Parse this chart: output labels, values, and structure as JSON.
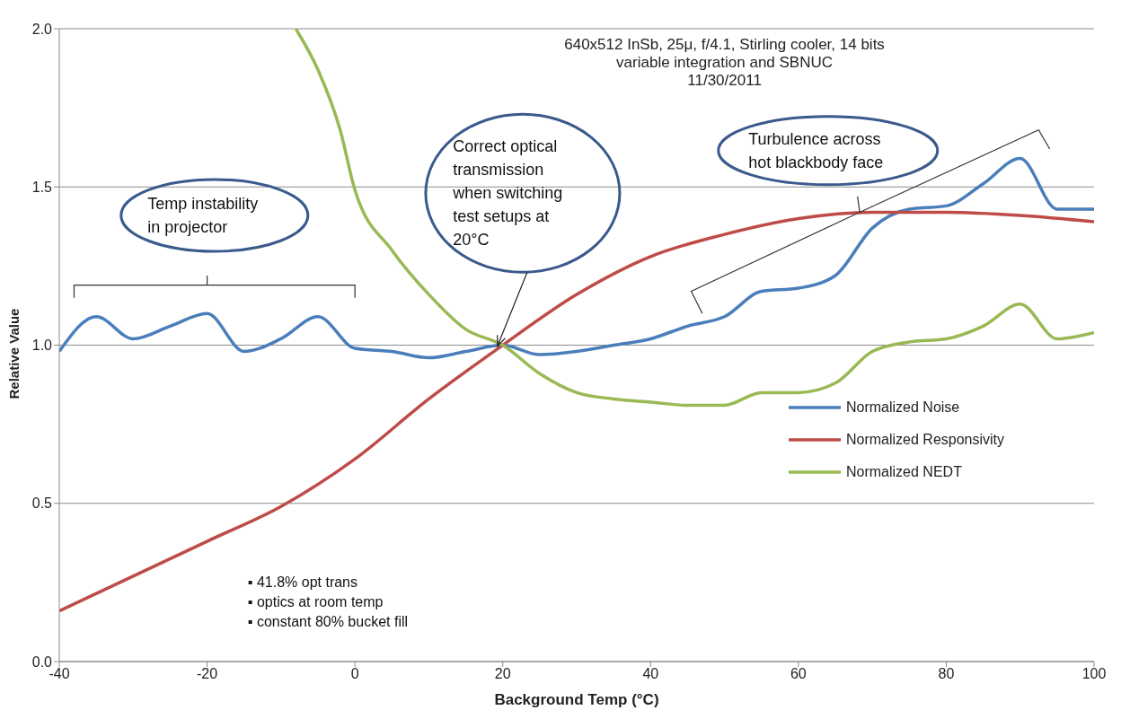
{
  "chart_data": {
    "type": "line",
    "subtitle": "640x512 InSb, 25μ, f/4.1, Stirling cooler, 14 bits\nvariable integration and SBNUC\n11/30/2011",
    "xlabel": "Background Temp (°C)",
    "ylabel": "Relative Value",
    "xlim": [
      -40,
      100
    ],
    "xticks": [
      -40,
      -20,
      0,
      20,
      40,
      60,
      80,
      100
    ],
    "ylim": [
      0,
      2
    ],
    "yticks": [
      {
        "value": 0,
        "label": "0.0"
      },
      0.5,
      {
        "value": 1,
        "label": "1.0"
      },
      1.5,
      {
        "value": 2,
        "label": "2.0"
      }
    ],
    "grid": "y",
    "legend": "bottom right",
    "marker": "none",
    "line_style": "solid",
    "annotations": [
      "Temp instability\nin projector",
      "Correct optical\ntransmission\nwhen switching\ntest setups at\n20°C",
      "Turbulence across\nhot blackbody face",
      "▪ 41.8% opt trans\n▪ optics at room temp\n▪ constant 80% bucket fill"
    ],
    "series": [
      {
        "name": "Normalized Noise",
        "color": "#4a7ebb",
        "x": [
          -40,
          -35,
          -30,
          -25,
          -20,
          -15,
          -10,
          -5,
          0,
          5,
          10,
          15,
          20,
          25,
          30,
          35,
          40,
          45,
          50,
          55,
          60,
          65,
          70,
          75,
          80,
          85,
          90,
          95,
          100
        ],
        "values": [
          0.98,
          1.09,
          1.02,
          1.06,
          1.1,
          0.98,
          1.02,
          1.09,
          0.99,
          0.98,
          0.96,
          0.98,
          1.0,
          0.97,
          0.98,
          1.0,
          1.02,
          1.06,
          1.09,
          1.17,
          1.18,
          1.22,
          1.37,
          1.43,
          1.44,
          1.51,
          1.59,
          1.43,
          1.43
        ]
      },
      {
        "name": "Normalized Responsivity",
        "color": "#be4b48",
        "x": [
          -40,
          -30,
          -20,
          -10,
          0,
          10,
          20,
          30,
          40,
          50,
          60,
          70,
          80,
          90,
          100
        ],
        "values": [
          0.16,
          0.27,
          0.38,
          0.49,
          0.64,
          0.83,
          1.0,
          1.16,
          1.28,
          1.35,
          1.4,
          1.42,
          1.42,
          1.41,
          1.39
        ]
      },
      {
        "name": "Normalized NEDT",
        "color": "#98b954",
        "x": [
          -8,
          -5,
          -2,
          0,
          5,
          10,
          15,
          20,
          25,
          30,
          35,
          40,
          45,
          50,
          55,
          60,
          65,
          70,
          75,
          80,
          85,
          90,
          95,
          100
        ],
        "values": [
          2.0,
          1.87,
          1.68,
          1.49,
          1.3,
          1.16,
          1.05,
          1.0,
          0.91,
          0.85,
          0.83,
          0.82,
          0.81,
          0.81,
          0.85,
          0.85,
          0.88,
          0.98,
          1.01,
          1.02,
          1.06,
          1.13,
          1.02,
          1.04
        ]
      }
    ]
  }
}
